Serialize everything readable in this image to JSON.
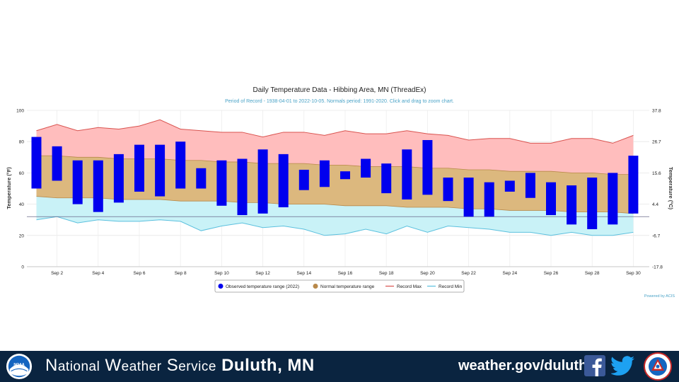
{
  "chart_data": {
    "type": "bar",
    "title": "Daily Temperature Data - Hibbing Area, MN (ThreadEx)",
    "subtitle": "Period of Record - 1938-04-01 to 2022-10-05. Normals period: 1991-2020. Click and drag to zoom chart.",
    "ylabel": "Temperature (°F)",
    "ylabel_right": "Temperature (°C)",
    "ylim": [
      0,
      100
    ],
    "days": [
      1,
      2,
      3,
      4,
      5,
      6,
      7,
      8,
      9,
      10,
      11,
      12,
      13,
      14,
      15,
      16,
      17,
      18,
      19,
      20,
      21,
      22,
      23,
      24,
      25,
      26,
      27,
      28,
      29,
      30
    ],
    "x_tick_days": [
      2,
      4,
      6,
      8,
      10,
      12,
      14,
      16,
      18,
      20,
      22,
      24,
      26,
      28,
      30
    ],
    "x_tick_labels": [
      "Sep 2",
      "Sep 4",
      "Sep 6",
      "Sep 8",
      "Sep 10",
      "Sep 12",
      "Sep 14",
      "Sep 16",
      "Sep 18",
      "Sep 20",
      "Sep 22",
      "Sep 24",
      "Sep 26",
      "Sep 28",
      "Sep 30"
    ],
    "y_ticks_left": [
      0,
      20,
      40,
      60,
      80,
      100
    ],
    "y_ticks_right": [
      {
        "value": 100,
        "label": "37.8"
      },
      {
        "value": 80,
        "label": "26.7"
      },
      {
        "value": 60,
        "label": "15.6"
      },
      {
        "value": 40,
        "label": "4.4"
      },
      {
        "value": 20,
        "label": "-6.7"
      },
      {
        "value": 0,
        "label": "-17.8"
      }
    ],
    "freezing_line": 32,
    "series": [
      {
        "name": "Observed temperature range (2022)",
        "color": "#0000ee",
        "high": [
          83,
          77,
          68,
          68,
          72,
          78,
          78,
          80,
          63,
          68,
          69,
          75,
          72,
          62,
          68,
          61,
          69,
          66,
          75,
          81,
          57,
          57,
          54,
          55,
          60,
          54,
          52,
          57,
          60,
          71
        ],
        "low": [
          50,
          55,
          40,
          35,
          41,
          48,
          45,
          50,
          50,
          39,
          33,
          34,
          38,
          49,
          51,
          56,
          57,
          47,
          43,
          46,
          42,
          32,
          32,
          48,
          44,
          33,
          27,
          24,
          27,
          34
        ]
      },
      {
        "name": "Normal temperature range",
        "color": "#c9a15a",
        "high": [
          71,
          71,
          70,
          70,
          69,
          69,
          69,
          68,
          68,
          67,
          67,
          66,
          66,
          66,
          65,
          65,
          64,
          64,
          64,
          63,
          63,
          62,
          62,
          61,
          61,
          61,
          60,
          60,
          59,
          59
        ],
        "low": [
          45,
          44,
          44,
          44,
          43,
          43,
          43,
          42,
          42,
          42,
          41,
          41,
          40,
          40,
          40,
          39,
          39,
          39,
          38,
          38,
          38,
          37,
          37,
          36,
          36,
          36,
          35,
          35,
          35,
          34
        ]
      },
      {
        "name": "Record Max",
        "color": "#d9534f",
        "values": [
          87,
          91,
          87,
          89,
          88,
          90,
          94,
          88,
          87,
          86,
          86,
          83,
          86,
          86,
          84,
          87,
          85,
          85,
          87,
          85,
          84,
          81,
          82,
          82,
          79,
          79,
          82,
          82,
          79,
          84
        ]
      },
      {
        "name": "Record Min",
        "color": "#5bc0de",
        "values": [
          30,
          32,
          28,
          30,
          29,
          29,
          30,
          29,
          23,
          26,
          28,
          25,
          26,
          24,
          20,
          21,
          24,
          21,
          26,
          22,
          26,
          25,
          24,
          22,
          22,
          20,
          22,
          20,
          20,
          22
        ]
      }
    ],
    "credit": "Powered by ACIS",
    "legend_position": "bottom-center"
  },
  "footer": {
    "org_prefix_initials": [
      "N",
      "W",
      "S"
    ],
    "org_rest": [
      "ational",
      "eather",
      "ervice"
    ],
    "office": "Duluth, MN",
    "website": "weather.gov/duluth",
    "noaa_logo_text": "NOAA",
    "icons": [
      "noaa-logo",
      "facebook-icon",
      "twitter-icon",
      "nws-logo"
    ],
    "colors": {
      "background": "#0a2440",
      "text": "#ffffff"
    }
  }
}
